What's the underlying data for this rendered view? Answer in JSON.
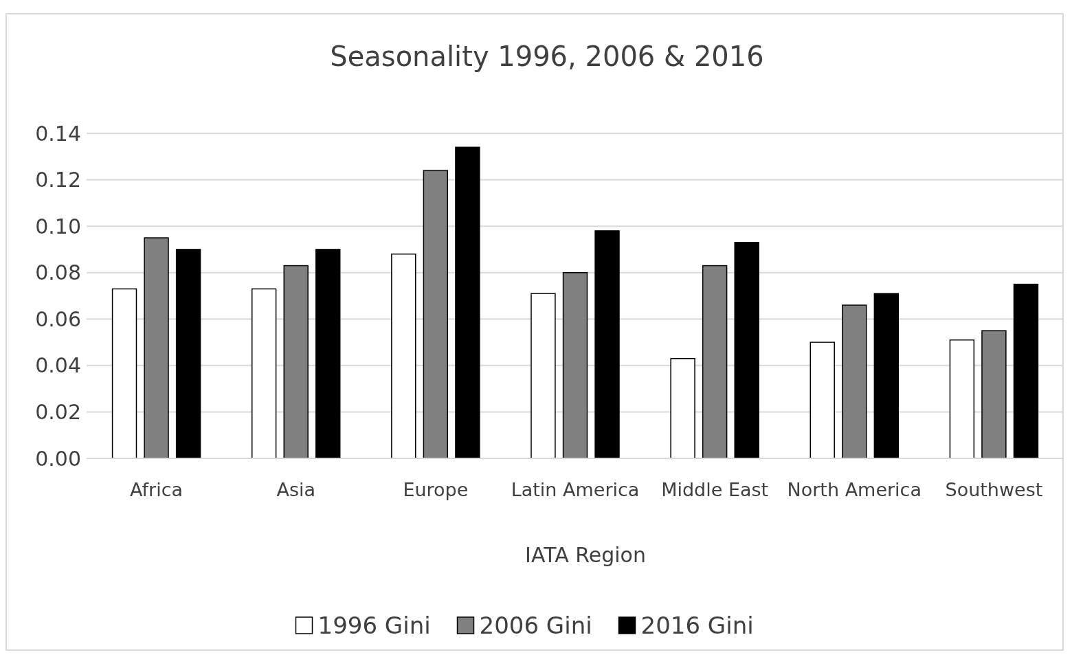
{
  "chart_data": {
    "type": "bar",
    "title": "Seasonality 1996, 2006 & 2016",
    "xlabel": "IATA Region",
    "categories": [
      "Africa",
      "Asia",
      "Europe",
      "Latin America",
      "Middle East",
      "North America",
      "Southwest"
    ],
    "series": [
      {
        "name": "1996 Gini",
        "color": "#ffffff",
        "values": [
          0.073,
          0.073,
          0.088,
          0.071,
          0.043,
          0.05,
          0.051
        ]
      },
      {
        "name": "2006 Gini",
        "color": "#808080",
        "values": [
          0.095,
          0.083,
          0.124,
          0.08,
          0.083,
          0.066,
          0.055
        ]
      },
      {
        "name": "2016 Gini",
        "color": "#000000",
        "values": [
          0.09,
          0.09,
          0.134,
          0.098,
          0.093,
          0.071,
          0.075
        ]
      }
    ],
    "ylim": [
      0,
      0.14
    ],
    "yticks": [
      {
        "value": 0,
        "label": "0.00"
      },
      {
        "value": 0.02,
        "label": "0.02"
      },
      {
        "value": 0.04,
        "label": "0.04"
      },
      {
        "value": 0.06,
        "label": "0.06"
      },
      {
        "value": 0.08,
        "label": "0.08"
      },
      {
        "value": 0.1,
        "label": "0.10"
      },
      {
        "value": 0.12,
        "label": "0.12"
      },
      {
        "value": 0.14,
        "label": "0.14"
      }
    ],
    "grid": "y",
    "legend": "bottom"
  }
}
